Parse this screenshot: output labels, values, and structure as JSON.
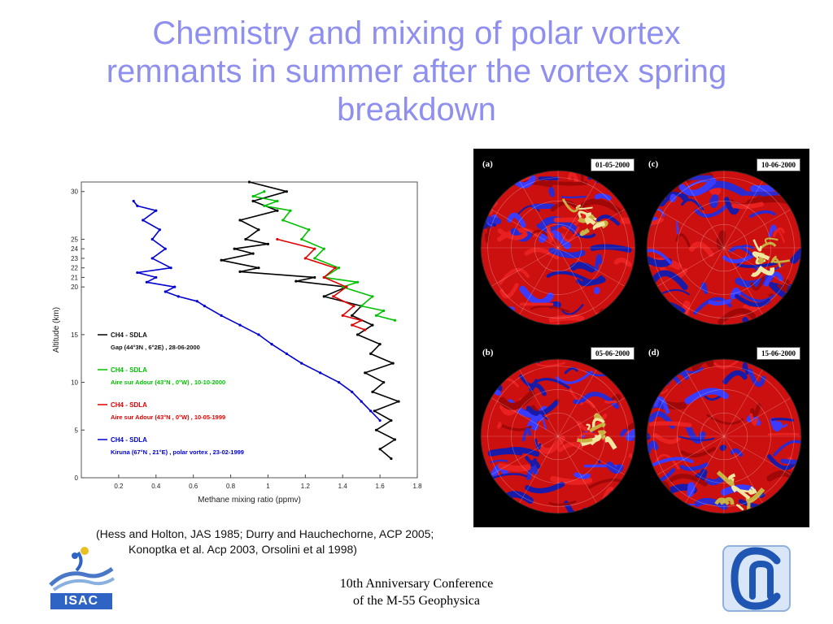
{
  "slide": {
    "title_lines": [
      "Chemistry and mixing of polar vortex",
      "remnants in summer after the vortex spring",
      "breakdown"
    ],
    "reference_text": "(Hess and Holton, JAS 1985; Durry and Hauchechorne, ACP 2005; Konoptka et al. Acp 2003, Orsolini et al 1998)",
    "footer_lines": [
      "10th Anniversary Conference",
      "of the M-55 Geophysica"
    ]
  },
  "logos": {
    "isac_text": "ISAC"
  },
  "chart_data": {
    "type": "line",
    "xlabel": "Methane mixing ratio (ppmv)",
    "ylabel": "Altitude (km)",
    "xlim": [
      0,
      1.8
    ],
    "ylim": [
      0,
      31
    ],
    "xticks": [
      0.2,
      0.4,
      0.6,
      0.8,
      1.0,
      1.2,
      1.4,
      1.6,
      1.8
    ],
    "yticks": [
      0,
      5,
      10,
      15,
      20,
      21,
      22,
      23,
      24,
      25,
      30
    ],
    "xtick_labels": [
      "0.2",
      "0.4",
      "0.6",
      "0.8",
      "1",
      "1.2",
      "1.4",
      "1.6",
      "1.8"
    ],
    "ytick_labels": [
      "0",
      "5",
      "10",
      "15",
      "20",
      "21",
      "22",
      "23",
      "24",
      "25",
      "30"
    ],
    "grid": false,
    "legend_position": "center-left",
    "series": [
      {
        "name": "CH4 - SDLA",
        "name_line2": "Gap (44°3N , 6°2E) , 28-06-2000",
        "color": "#000000",
        "points": [
          [
            1.66,
            2
          ],
          [
            1.6,
            3
          ],
          [
            1.68,
            4
          ],
          [
            1.58,
            5
          ],
          [
            1.66,
            6
          ],
          [
            1.57,
            7
          ],
          [
            1.7,
            8
          ],
          [
            1.56,
            9
          ],
          [
            1.62,
            10
          ],
          [
            1.52,
            11
          ],
          [
            1.67,
            12
          ],
          [
            1.55,
            13
          ],
          [
            1.6,
            14
          ],
          [
            1.48,
            15
          ],
          [
            1.56,
            16
          ],
          [
            1.45,
            17
          ],
          [
            1.5,
            18
          ],
          [
            1.3,
            19
          ],
          [
            1.42,
            20
          ],
          [
            1.15,
            20.6
          ],
          [
            1.25,
            21
          ],
          [
            0.85,
            21.6
          ],
          [
            0.95,
            22
          ],
          [
            0.75,
            22.8
          ],
          [
            0.92,
            23.5
          ],
          [
            0.82,
            24
          ],
          [
            1.0,
            24.5
          ],
          [
            0.88,
            25
          ],
          [
            0.95,
            26
          ],
          [
            0.85,
            27
          ],
          [
            1.05,
            28
          ],
          [
            0.92,
            29
          ],
          [
            1.1,
            30
          ],
          [
            0.9,
            31
          ]
        ]
      },
      {
        "name": "CH4 - SDLA",
        "name_line2": "Aire sur Adour (43°N , 0°W) , 10-10-2000",
        "color": "#00c000",
        "points": [
          [
            1.68,
            16.5
          ],
          [
            1.58,
            17
          ],
          [
            1.62,
            17.5
          ],
          [
            1.5,
            18
          ],
          [
            1.56,
            19
          ],
          [
            1.4,
            20
          ],
          [
            1.48,
            20.5
          ],
          [
            1.3,
            21
          ],
          [
            1.38,
            22
          ],
          [
            1.25,
            23
          ],
          [
            1.3,
            24
          ],
          [
            1.18,
            25
          ],
          [
            1.22,
            26
          ],
          [
            1.08,
            27
          ],
          [
            1.12,
            28
          ],
          [
            0.98,
            28.5
          ],
          [
            1.05,
            29
          ],
          [
            0.92,
            29.5
          ],
          [
            0.98,
            30
          ]
        ]
      },
      {
        "name": "CH4 - SDLA",
        "name_line2": "Aire sur Adour (43°N , 0°W) , 10-05-1999",
        "color": "#e00000",
        "points": [
          [
            1.52,
            15.5
          ],
          [
            1.45,
            16
          ],
          [
            1.5,
            16.5
          ],
          [
            1.4,
            17
          ],
          [
            1.46,
            18
          ],
          [
            1.35,
            19
          ],
          [
            1.42,
            20
          ],
          [
            1.3,
            21
          ],
          [
            1.36,
            22
          ],
          [
            1.2,
            23
          ],
          [
            1.25,
            24
          ],
          [
            1.05,
            25
          ]
        ]
      },
      {
        "name": "CH4 - SDLA",
        "name_line2": "Kiruna (67°N , 21°E) , polar vortex , 23-02-1999",
        "color": "#0000d0",
        "points": [
          [
            1.6,
            6
          ],
          [
            1.55,
            7
          ],
          [
            1.5,
            8
          ],
          [
            1.45,
            9
          ],
          [
            1.38,
            10
          ],
          [
            1.28,
            11
          ],
          [
            1.18,
            12
          ],
          [
            1.1,
            13
          ],
          [
            1.02,
            14
          ],
          [
            0.95,
            15
          ],
          [
            0.85,
            16
          ],
          [
            0.75,
            17
          ],
          [
            0.66,
            18
          ],
          [
            0.62,
            18.5
          ],
          [
            0.52,
            19
          ],
          [
            0.45,
            19.5
          ],
          [
            0.5,
            20
          ],
          [
            0.35,
            20.5
          ],
          [
            0.4,
            21
          ],
          [
            0.3,
            21.5
          ],
          [
            0.48,
            22
          ],
          [
            0.38,
            23
          ],
          [
            0.45,
            24
          ],
          [
            0.38,
            25
          ],
          [
            0.42,
            26
          ],
          [
            0.33,
            27
          ],
          [
            0.4,
            28
          ],
          [
            0.3,
            28.5
          ],
          [
            0.28,
            29
          ]
        ]
      }
    ]
  },
  "maps": [
    {
      "letter": "(a)",
      "date": "01-05-2000"
    },
    {
      "letter": "(c)",
      "date": "10-06-2000"
    },
    {
      "letter": "(b)",
      "date": "05-06-2000"
    },
    {
      "letter": "(d)",
      "date": "15-06-2000"
    }
  ]
}
